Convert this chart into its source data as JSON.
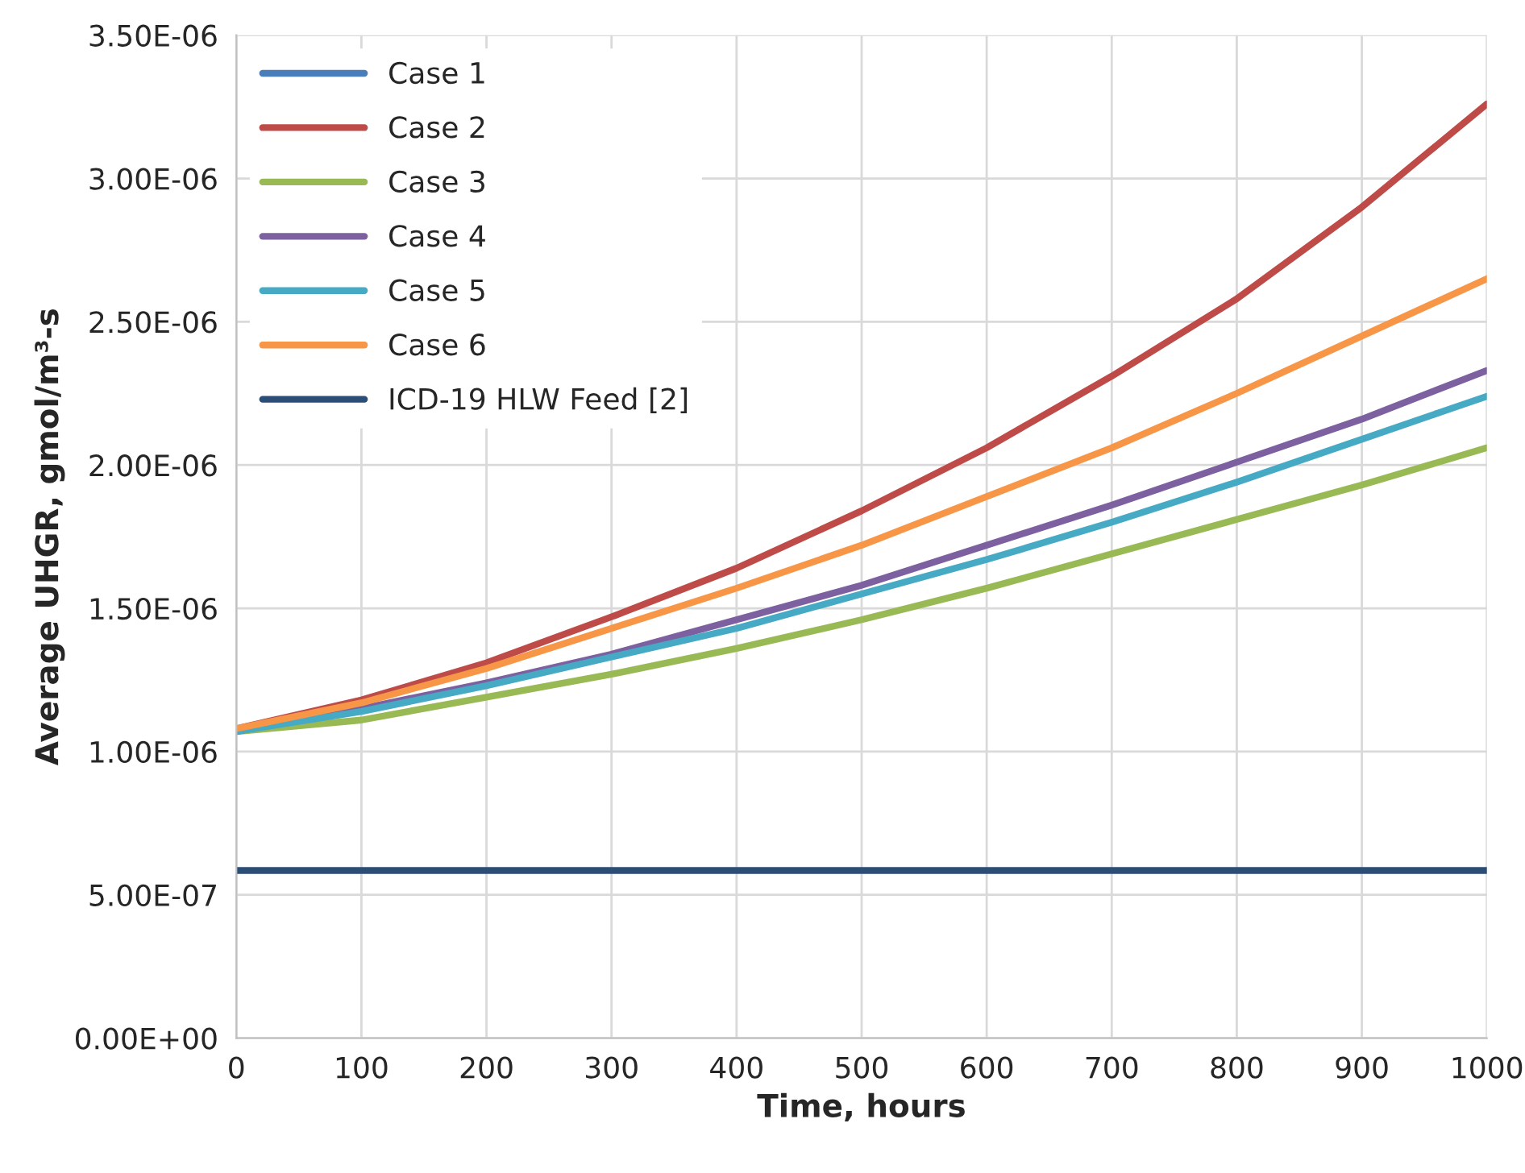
{
  "chart_data": {
    "type": "line",
    "xlabel": "Time, hours",
    "ylabel": "Average UHGR, gmol/m³-s",
    "x": [
      0,
      100,
      200,
      300,
      400,
      500,
      600,
      700,
      800,
      900,
      1000
    ],
    "series": [
      {
        "name": "Case 1",
        "color": "#4a7ebb",
        "values": [
          null,
          null,
          null,
          null,
          null,
          null,
          null,
          null,
          null,
          null,
          null
        ]
      },
      {
        "name": "Case 2",
        "color": "#be4b48",
        "values": [
          1.08e-06,
          1.18e-06,
          1.31e-06,
          1.47e-06,
          1.64e-06,
          1.84e-06,
          2.06e-06,
          2.31e-06,
          2.58e-06,
          2.9e-06,
          3.26e-06
        ]
      },
      {
        "name": "Case 3",
        "color": "#98b954",
        "values": [
          1.07e-06,
          1.11e-06,
          1.19e-06,
          1.27e-06,
          1.36e-06,
          1.46e-06,
          1.57e-06,
          1.69e-06,
          1.81e-06,
          1.93e-06,
          2.06e-06
        ]
      },
      {
        "name": "Case 4",
        "color": "#7d60a0",
        "values": [
          1.07e-06,
          1.15e-06,
          1.24e-06,
          1.34e-06,
          1.46e-06,
          1.58e-06,
          1.72e-06,
          1.86e-06,
          2.01e-06,
          2.16e-06,
          2.33e-06
        ]
      },
      {
        "name": "Case 5",
        "color": "#46aac5",
        "values": [
          1.07e-06,
          1.14e-06,
          1.23e-06,
          1.33e-06,
          1.43e-06,
          1.55e-06,
          1.67e-06,
          1.8e-06,
          1.94e-06,
          2.09e-06,
          2.24e-06
        ]
      },
      {
        "name": "Case 6",
        "color": "#f79646",
        "values": [
          1.08e-06,
          1.17e-06,
          1.29e-06,
          1.43e-06,
          1.57e-06,
          1.72e-06,
          1.89e-06,
          2.06e-06,
          2.25e-06,
          2.45e-06,
          2.65e-06
        ]
      },
      {
        "name": "ICD-19 HLW Feed [2]",
        "color": "#2c4d75",
        "x": [
          0,
          1000
        ],
        "values": [
          5.85e-07,
          5.85e-07
        ]
      }
    ],
    "xlim": [
      0,
      1000
    ],
    "xticks": [
      0,
      100,
      200,
      300,
      400,
      500,
      600,
      700,
      800,
      900,
      1000
    ],
    "ylim": [
      0,
      3.5e-06
    ],
    "yticks": [
      {
        "value": 0,
        "label": "0.00E+00"
      },
      {
        "value": 5e-07,
        "label": "5.00E-07"
      },
      {
        "value": 1e-06,
        "label": "1.00E-06"
      },
      {
        "value": 1.5e-06,
        "label": "1.50E-06"
      },
      {
        "value": 2e-06,
        "label": "2.00E-06"
      },
      {
        "value": 2.5e-06,
        "label": "2.50E-06"
      },
      {
        "value": 3e-06,
        "label": "3.00E-06"
      },
      {
        "value": 3.5e-06,
        "label": "3.50E-06"
      }
    ],
    "grid": true,
    "legend": "top left",
    "marker": "none",
    "line_style": "solid"
  }
}
